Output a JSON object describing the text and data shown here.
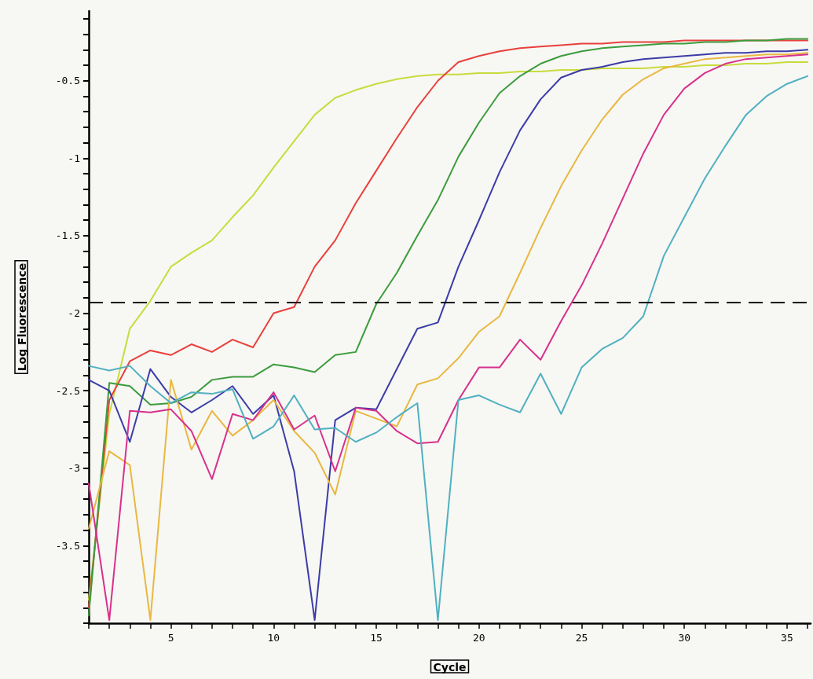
{
  "chart_data": {
    "type": "line",
    "xlabel": "Cycle",
    "ylabel": "Log Fluorescence",
    "x": [
      1,
      2,
      3,
      4,
      5,
      6,
      7,
      8,
      9,
      10,
      11,
      12,
      13,
      14,
      15,
      16,
      17,
      18,
      19,
      20,
      21,
      22,
      23,
      24,
      25,
      26,
      27,
      28,
      29,
      30,
      31,
      32,
      33,
      34,
      35,
      36
    ],
    "series": [
      {
        "color": "#c8dc3c",
        "values": [
          -3.85,
          -2.65,
          -2.1,
          -1.92,
          -1.7,
          -1.61,
          -1.53,
          -1.38,
          -1.24,
          -1.06,
          -0.89,
          -0.72,
          -0.61,
          -0.56,
          -0.52,
          -0.49,
          -0.47,
          -0.46,
          -0.46,
          -0.45,
          -0.45,
          -0.44,
          -0.44,
          -0.43,
          -0.43,
          -0.42,
          -0.42,
          -0.42,
          -0.41,
          -0.41,
          -0.4,
          -0.4,
          -0.39,
          -0.39,
          -0.38,
          -0.38
        ]
      },
      {
        "color": "#e8403c",
        "values": [
          -3.9,
          -2.56,
          -2.31,
          -2.24,
          -2.27,
          -2.2,
          -2.25,
          -2.17,
          -2.22,
          -2.0,
          -1.96,
          -1.7,
          -1.53,
          -1.29,
          -1.08,
          -0.87,
          -0.67,
          -0.5,
          -0.38,
          -0.34,
          -0.31,
          -0.29,
          -0.28,
          -0.27,
          -0.26,
          -0.26,
          -0.25,
          -0.25,
          -0.25,
          -0.24,
          -0.24,
          -0.24,
          -0.24,
          -0.24,
          -0.24,
          -0.24
        ]
      },
      {
        "color": "#3c9c3c",
        "values": [
          -3.95,
          -2.45,
          -2.47,
          -2.59,
          -2.58,
          -2.54,
          -2.43,
          -2.41,
          -2.41,
          -2.33,
          -2.35,
          -2.38,
          -2.27,
          -2.25,
          -1.94,
          -1.74,
          -1.5,
          -1.27,
          -0.99,
          -0.77,
          -0.58,
          -0.47,
          -0.39,
          -0.34,
          -0.31,
          -0.29,
          -0.28,
          -0.27,
          -0.26,
          -0.26,
          -0.25,
          -0.25,
          -0.24,
          -0.24,
          -0.23,
          -0.23
        ]
      },
      {
        "color": "#3c3ca8",
        "values": [
          -2.43,
          -2.5,
          -2.83,
          -2.36,
          -2.54,
          -2.64,
          -2.56,
          -2.47,
          -2.65,
          -2.53,
          -3.02,
          -3.98,
          -2.69,
          -2.61,
          -2.62,
          -2.36,
          -2.1,
          -2.06,
          -1.7,
          -1.4,
          -1.09,
          -0.82,
          -0.62,
          -0.48,
          -0.43,
          -0.41,
          -0.38,
          -0.36,
          -0.35,
          -0.34,
          -0.33,
          -0.32,
          -0.32,
          -0.31,
          -0.31,
          -0.3
        ]
      },
      {
        "color": "#e8b840",
        "values": [
          -3.39,
          -2.89,
          -2.98,
          -3.98,
          -2.43,
          -2.88,
          -2.63,
          -2.79,
          -2.69,
          -2.56,
          -2.76,
          -2.9,
          -3.17,
          -2.63,
          -2.68,
          -2.73,
          -2.46,
          -2.42,
          -2.29,
          -2.12,
          -2.02,
          -1.74,
          -1.45,
          -1.18,
          -0.95,
          -0.75,
          -0.59,
          -0.49,
          -0.42,
          -0.39,
          -0.36,
          -0.35,
          -0.34,
          -0.33,
          -0.33,
          -0.32
        ]
      },
      {
        "color": "#d8308c",
        "values": [
          -3.1,
          -3.98,
          -2.63,
          -2.64,
          -2.62,
          -2.76,
          -3.07,
          -2.65,
          -2.69,
          -2.51,
          -2.75,
          -2.66,
          -3.02,
          -2.61,
          -2.63,
          -2.76,
          -2.84,
          -2.83,
          -2.56,
          -2.35,
          -2.35,
          -2.17,
          -2.3,
          -2.05,
          -1.82,
          -1.55,
          -1.26,
          -0.97,
          -0.72,
          -0.55,
          -0.45,
          -0.39,
          -0.36,
          -0.35,
          -0.34,
          -0.33
        ]
      },
      {
        "color": "#50b0c0",
        "values": [
          -2.34,
          -2.37,
          -2.34,
          -2.47,
          -2.58,
          -2.51,
          -2.52,
          -2.49,
          -2.81,
          -2.73,
          -2.53,
          -2.75,
          -2.74,
          -2.83,
          -2.77,
          -2.67,
          -2.58,
          -3.98,
          -2.56,
          -2.53,
          -2.59,
          -2.64,
          -2.39,
          -2.65,
          -2.35,
          -2.23,
          -2.16,
          -2.02,
          -1.63,
          -1.38,
          -1.13,
          -0.92,
          -0.72,
          -0.6,
          -0.52,
          -0.47
        ]
      }
    ],
    "xlim": [
      1,
      36.15
    ],
    "ylim": [
      -4,
      -0.05
    ],
    "xticks": [
      {
        "value": 1,
        "label": null
      },
      {
        "value": 2,
        "label": null
      },
      {
        "value": 3,
        "label": null
      },
      {
        "value": 4,
        "label": null
      },
      5,
      {
        "value": 6,
        "label": null
      },
      {
        "value": 7,
        "label": null
      },
      {
        "value": 8,
        "label": null
      },
      {
        "value": 9,
        "label": null
      },
      10,
      {
        "value": 11,
        "label": null
      },
      {
        "value": 12,
        "label": null
      },
      {
        "value": 13,
        "label": null
      },
      {
        "value": 14,
        "label": null
      },
      15,
      {
        "value": 16,
        "label": null
      },
      {
        "value": 17,
        "label": null
      },
      {
        "value": 18,
        "label": null
      },
      {
        "value": 19,
        "label": null
      },
      20,
      {
        "value": 21,
        "label": null
      },
      {
        "value": 22,
        "label": null
      },
      {
        "value": 23,
        "label": null
      },
      {
        "value": 24,
        "label": null
      },
      25,
      {
        "value": 26,
        "label": null
      },
      {
        "value": 27,
        "label": null
      },
      {
        "value": 28,
        "label": null
      },
      {
        "value": 29,
        "label": null
      },
      30,
      {
        "value": 31,
        "label": null
      },
      {
        "value": 32,
        "label": null
      },
      {
        "value": 33,
        "label": null
      },
      {
        "value": 34,
        "label": null
      },
      35,
      {
        "value": 36,
        "label": null
      }
    ],
    "yticks": [
      {
        "value": -4,
        "label": null
      },
      {
        "value": -3.9,
        "label": null
      },
      {
        "value": -3.8,
        "label": null
      },
      {
        "value": -3.7,
        "label": null
      },
      {
        "value": -3.6,
        "label": null
      },
      -3.5,
      {
        "value": -3.4,
        "label": null
      },
      {
        "value": -3.3,
        "label": null
      },
      {
        "value": -3.2,
        "label": null
      },
      {
        "value": -3.1,
        "label": null
      },
      -3,
      {
        "value": -2.9,
        "label": null
      },
      {
        "value": -2.8,
        "label": null
      },
      {
        "value": -2.7,
        "label": null
      },
      {
        "value": -2.6,
        "label": null
      },
      -2.5,
      {
        "value": -2.4,
        "label": null
      },
      {
        "value": -2.3,
        "label": null
      },
      {
        "value": -2.2,
        "label": null
      },
      {
        "value": -2.1,
        "label": null
      },
      -2,
      {
        "value": -1.9,
        "label": null
      },
      {
        "value": -1.8,
        "label": null
      },
      {
        "value": -1.7,
        "label": null
      },
      {
        "value": -1.6,
        "label": null
      },
      -1.5,
      {
        "value": -1.4,
        "label": null
      },
      {
        "value": -1.3,
        "label": null
      },
      {
        "value": -1.2,
        "label": null
      },
      {
        "value": -1.1,
        "label": null
      },
      -1,
      {
        "value": -0.9,
        "label": null
      },
      {
        "value": -0.8,
        "label": null
      },
      {
        "value": -0.7,
        "label": null
      },
      {
        "value": -0.6,
        "label": null
      },
      -0.5,
      {
        "value": -0.4,
        "label": null
      },
      {
        "value": -0.3,
        "label": null
      },
      {
        "value": -0.2,
        "label": null
      },
      {
        "value": -0.1,
        "label": null
      }
    ],
    "ref_lines": [
      {
        "axis": "y",
        "value": -1.93,
        "color": "#000000",
        "line_style": "dashed"
      }
    ],
    "grid": false,
    "marker": "none",
    "line_style": "solid"
  }
}
